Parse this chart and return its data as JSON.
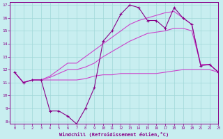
{
  "xlabel": "Windchill (Refroidissement éolien,°C)",
  "xlim": [
    -0.5,
    23
  ],
  "ylim": [
    7.8,
    17.2
  ],
  "yticks": [
    8,
    9,
    10,
    11,
    12,
    13,
    14,
    15,
    16,
    17
  ],
  "xticks": [
    0,
    1,
    2,
    3,
    4,
    5,
    6,
    7,
    8,
    9,
    10,
    11,
    12,
    13,
    14,
    15,
    16,
    17,
    18,
    19,
    20,
    21,
    22,
    23
  ],
  "background_color": "#c8eef0",
  "grid_color": "#a0d8d8",
  "line_color_main": "#880088",
  "line_color_trend": "#cc44cc",
  "series": {
    "temp": [
      11.8,
      11.0,
      11.2,
      11.2,
      8.8,
      8.8,
      8.4,
      7.8,
      9.0,
      10.6,
      14.2,
      15.0,
      16.3,
      17.0,
      16.8,
      15.8,
      15.8,
      15.2,
      16.8,
      16.0,
      15.5,
      12.3,
      12.4,
      11.8
    ],
    "trend_high": [
      11.8,
      11.0,
      11.2,
      11.2,
      11.5,
      12.0,
      12.5,
      12.5,
      13.0,
      13.5,
      14.0,
      14.5,
      15.0,
      15.5,
      15.8,
      16.0,
      16.2,
      16.4,
      16.5,
      16.0,
      15.5,
      12.4,
      12.4,
      11.8
    ],
    "trend_mid": [
      11.8,
      11.0,
      11.2,
      11.2,
      11.4,
      11.7,
      12.0,
      12.0,
      12.2,
      12.5,
      13.0,
      13.4,
      13.8,
      14.2,
      14.5,
      14.8,
      14.9,
      15.0,
      15.2,
      15.2,
      15.0,
      12.4,
      12.4,
      11.8
    ],
    "trend_low": [
      11.8,
      11.0,
      11.2,
      11.2,
      11.2,
      11.2,
      11.2,
      11.2,
      11.3,
      11.5,
      11.6,
      11.6,
      11.7,
      11.7,
      11.7,
      11.7,
      11.7,
      11.8,
      11.9,
      12.0,
      12.0,
      12.0,
      12.0,
      11.8
    ]
  }
}
